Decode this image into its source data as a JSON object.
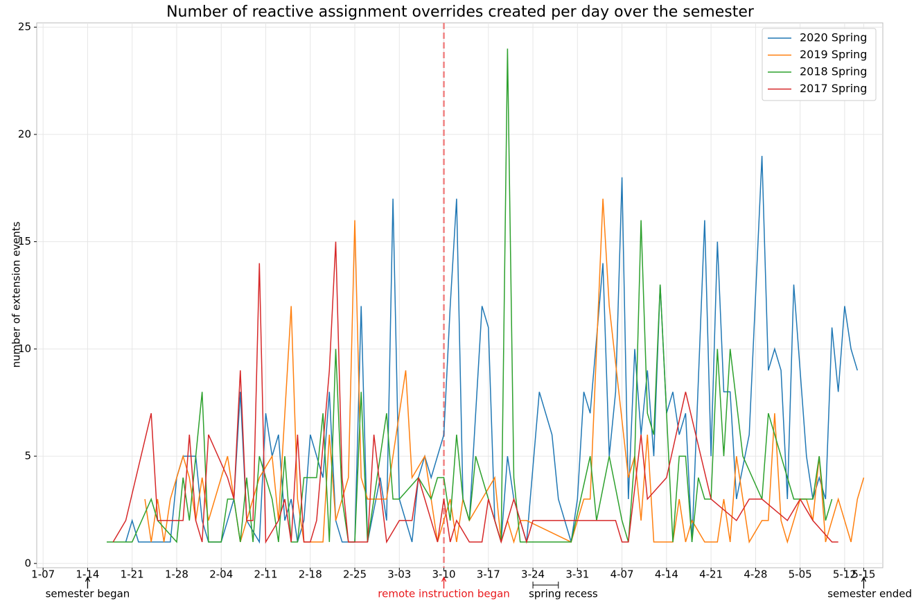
{
  "chart_data": {
    "type": "line",
    "title": "Number of reactive assignment overrides created per day over the semester",
    "y_label": "number of extension events",
    "xlim": [
      -1,
      132
    ],
    "ylim": [
      -0.2,
      25.2
    ],
    "xticks": [
      {
        "value": 0,
        "label": "1-07"
      },
      {
        "value": 7,
        "label": "1-14"
      },
      {
        "value": 14,
        "label": "1-21"
      },
      {
        "value": 21,
        "label": "1-28"
      },
      {
        "value": 28,
        "label": "2-04"
      },
      {
        "value": 35,
        "label": "2-11"
      },
      {
        "value": 42,
        "label": "2-18"
      },
      {
        "value": 49,
        "label": "2-25"
      },
      {
        "value": 56,
        "label": "3-03"
      },
      {
        "value": 63,
        "label": "3-10"
      },
      {
        "value": 70,
        "label": "3-17"
      },
      {
        "value": 77,
        "label": "3-24"
      },
      {
        "value": 84,
        "label": "3-31"
      },
      {
        "value": 91,
        "label": "4-07"
      },
      {
        "value": 98,
        "label": "4-14"
      },
      {
        "value": 105,
        "label": "4-21"
      },
      {
        "value": 112,
        "label": "4-28"
      },
      {
        "value": 119,
        "label": "5-05"
      },
      {
        "value": 126,
        "label": "5-12"
      },
      {
        "value": 129,
        "label": "5-15"
      }
    ],
    "yticks": [
      0,
      5,
      10,
      15,
      20,
      25
    ],
    "grid": true,
    "legend": "upper right",
    "vline": {
      "x": 63,
      "color": "#f08080"
    },
    "annotations": [
      {
        "text": "semester began",
        "x": 7,
        "color": "#000000"
      },
      {
        "text": "remote instruction began",
        "x": 63,
        "color": "#e8191c"
      },
      {
        "text": "spring recess",
        "x": 77,
        "x_end": 81,
        "color": "#000000"
      },
      {
        "text": "semester ended",
        "x": 129,
        "color": "#000000"
      }
    ],
    "series": [
      {
        "name": "2020 Spring",
        "color": "#1f77b4",
        "x": [
          13,
          14,
          15,
          20,
          21,
          22,
          24,
          25,
          26,
          28,
          30,
          31,
          32,
          34,
          35,
          36,
          37,
          38,
          39,
          40,
          41,
          42,
          44,
          45,
          46,
          47,
          49,
          50,
          51,
          53,
          54,
          55,
          56,
          58,
          59,
          60,
          61,
          63,
          64,
          65,
          66,
          67,
          69,
          70,
          71,
          72,
          73,
          74,
          76,
          78,
          80,
          81,
          83,
          84,
          85,
          86,
          88,
          89,
          90,
          91,
          92,
          93,
          94,
          95,
          96,
          97,
          98,
          99,
          100,
          101,
          102,
          104,
          105,
          106,
          107,
          108,
          109,
          111,
          113,
          114,
          115,
          116,
          117,
          118,
          120,
          121,
          122,
          123,
          124,
          125,
          126,
          127,
          128
        ],
        "values": [
          1,
          2,
          1,
          1,
          4,
          5,
          5,
          2,
          1,
          1,
          3,
          8,
          2,
          1,
          7,
          5,
          6,
          2,
          3,
          1,
          2,
          6,
          4,
          8,
          2,
          1,
          1,
          12,
          1,
          4,
          2,
          17,
          3,
          1,
          4,
          5,
          4,
          6,
          12,
          17,
          3,
          2,
          12,
          11,
          2,
          1,
          5,
          3,
          1,
          8,
          6,
          3,
          1,
          3,
          8,
          7,
          14,
          5,
          8,
          18,
          3,
          10,
          6,
          9,
          5,
          13,
          7,
          8,
          6,
          7,
          1,
          16,
          5,
          15,
          8,
          8,
          3,
          6,
          19,
          9,
          10,
          9,
          3,
          13,
          5,
          3,
          4,
          3,
          11,
          8,
          12,
          10,
          9
        ]
      },
      {
        "name": "2019 Spring",
        "color": "#ff7f0e",
        "x": [
          16,
          17,
          18,
          19,
          20,
          22,
          23,
          24,
          25,
          26,
          29,
          30,
          31,
          33,
          34,
          36,
          37,
          39,
          40,
          41,
          44,
          45,
          46,
          48,
          49,
          50,
          51,
          54,
          57,
          58,
          60,
          62,
          63,
          64,
          65,
          66,
          67,
          71,
          72,
          73,
          74,
          75,
          76,
          83,
          85,
          86,
          88,
          89,
          92,
          93,
          94,
          95,
          96,
          99,
          100,
          101,
          102,
          104,
          106,
          107,
          108,
          109,
          110,
          111,
          113,
          114,
          115,
          116,
          117,
          119,
          120,
          121,
          122,
          123,
          125,
          127,
          128,
          129
        ],
        "values": [
          3,
          1,
          3,
          1,
          3,
          5,
          4,
          2,
          4,
          2,
          5,
          3,
          1,
          3,
          4,
          5,
          2,
          12,
          3,
          1,
          1,
          6,
          2,
          4,
          16,
          4,
          3,
          3,
          9,
          4,
          5,
          1,
          2,
          3,
          1,
          3,
          2,
          4,
          1,
          2,
          1,
          2,
          2,
          1,
          3,
          3,
          17,
          12,
          4,
          5,
          2,
          6,
          1,
          1,
          3,
          1,
          2,
          1,
          1,
          3,
          1,
          5,
          3,
          1,
          2,
          2,
          7,
          2,
          1,
          3,
          3,
          2,
          5,
          1,
          3,
          1,
          3,
          4
        ]
      },
      {
        "name": "2018 Spring",
        "color": "#2ca02c",
        "x": [
          10,
          14,
          17,
          18,
          21,
          22,
          23,
          25,
          26,
          28,
          29,
          30,
          31,
          32,
          33,
          34,
          36,
          37,
          38,
          39,
          40,
          41,
          43,
          44,
          45,
          46,
          47,
          48,
          49,
          50,
          51,
          54,
          55,
          56,
          59,
          61,
          62,
          63,
          64,
          65,
          66,
          67,
          68,
          71,
          72,
          73,
          74,
          75,
          76,
          83,
          86,
          87,
          89,
          91,
          92,
          93,
          94,
          95,
          96,
          97,
          98,
          99,
          100,
          101,
          102,
          103,
          104,
          105,
          106,
          107,
          108,
          110,
          113,
          114,
          118,
          121,
          122,
          123,
          124
        ],
        "values": [
          1,
          1,
          3,
          2,
          1,
          4,
          2,
          8,
          1,
          1,
          3,
          3,
          1,
          4,
          1,
          5,
          3,
          1,
          5,
          1,
          1,
          4,
          4,
          7,
          1,
          10,
          3,
          1,
          1,
          8,
          1,
          7,
          3,
          3,
          4,
          3,
          4,
          4,
          2,
          6,
          3,
          2,
          5,
          2,
          1,
          24,
          4,
          1,
          1,
          1,
          5,
          2,
          5,
          2,
          1,
          5,
          16,
          7,
          6,
          13,
          7,
          1,
          5,
          5,
          1,
          4,
          3,
          3,
          10,
          5,
          10,
          5,
          3,
          7,
          3,
          3,
          5,
          2,
          3
        ]
      },
      {
        "name": "2017 Spring",
        "color": "#d62728",
        "x": [
          11,
          13,
          17,
          18,
          22,
          23,
          24,
          25,
          26,
          29,
          30,
          31,
          32,
          33,
          34,
          35,
          37,
          38,
          39,
          40,
          41,
          42,
          43,
          45,
          46,
          47,
          48,
          51,
          52,
          54,
          56,
          58,
          59,
          62,
          63,
          64,
          65,
          67,
          69,
          70,
          72,
          74,
          76,
          77,
          90,
          91,
          92,
          94,
          95,
          98,
          101,
          105,
          109,
          111,
          113,
          117,
          119,
          121,
          124,
          125
        ],
        "values": [
          1,
          2,
          7,
          2,
          2,
          6,
          2,
          1,
          6,
          4,
          3,
          9,
          2,
          2,
          14,
          1,
          2,
          3,
          1,
          6,
          1,
          1,
          2,
          9,
          15,
          4,
          1,
          1,
          6,
          1,
          2,
          2,
          4,
          1,
          3,
          1,
          2,
          1,
          1,
          3,
          1,
          3,
          1,
          2,
          2,
          1,
          1,
          6,
          3,
          4,
          8,
          3,
          2,
          3,
          3,
          2,
          3,
          2,
          1,
          1
        ]
      }
    ]
  }
}
